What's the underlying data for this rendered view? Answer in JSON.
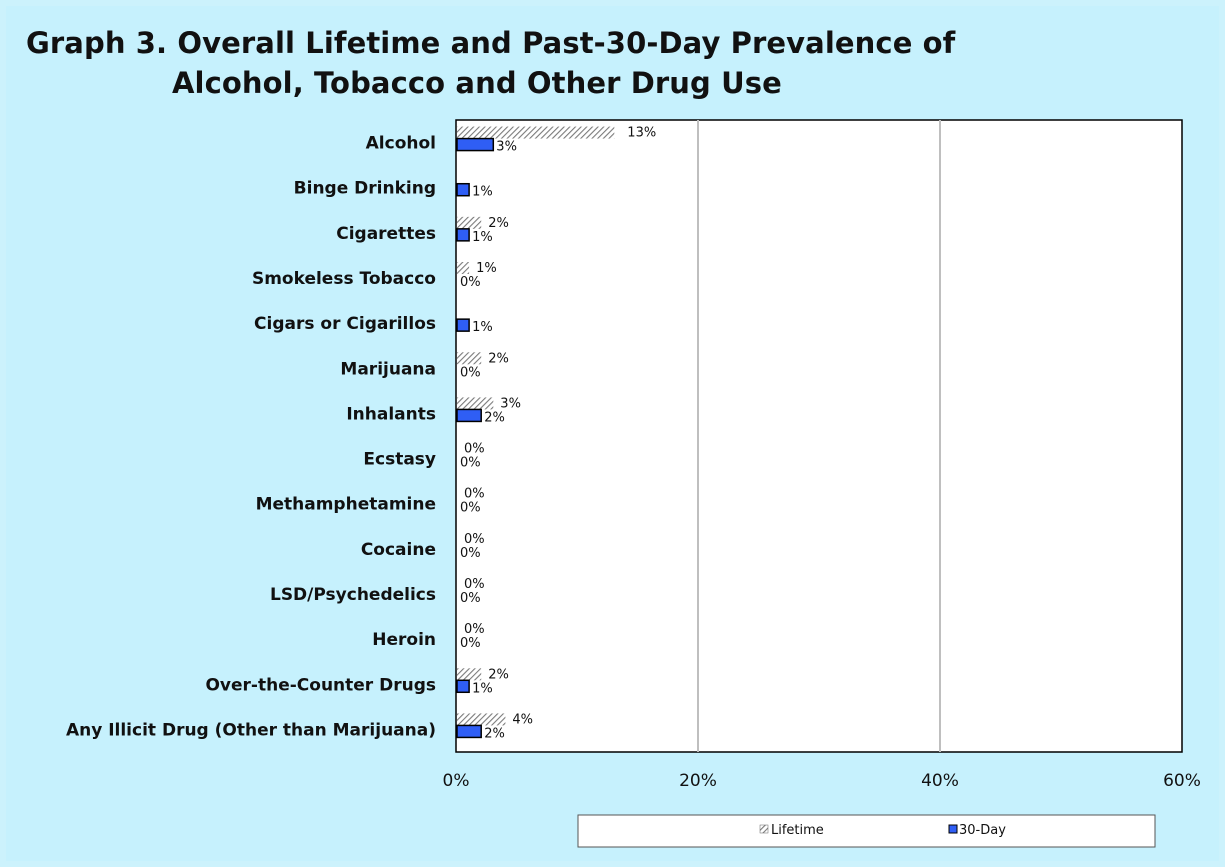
{
  "chart_data": {
    "type": "bar",
    "orientation": "horizontal",
    "title": "Graph 3. Overall Lifetime and Past-30-Day Prevalence of Alcohol, Tobacco and Other Drug Use",
    "title_lines": [
      "Graph 3. Overall Lifetime and Past-30-Day Prevalence of",
      "Alcohol, Tobacco and Other Drug Use"
    ],
    "xlabel": "",
    "ylabel": "",
    "xlim": [
      0,
      60
    ],
    "x_ticks": [
      0,
      20,
      40,
      60
    ],
    "x_tick_labels": [
      "0%",
      "20%",
      "40%",
      "60%"
    ],
    "grid": true,
    "legend_position": "bottom",
    "categories": [
      "Alcohol",
      "Binge Drinking",
      "Cigarettes",
      "Smokeless Tobacco",
      "Cigars or Cigarillos",
      "Marijuana",
      "Inhalants",
      "Ecstasy",
      "Methamphetamine",
      "Cocaine",
      "LSD/Psychedelics",
      "Heroin",
      "Over-the-Counter Drugs",
      "Any Illicit Drug (Other than Marijuana)"
    ],
    "series": [
      {
        "name": "Lifetime",
        "pattern": "hatched",
        "color": "#8c8c8c",
        "values": [
          13,
          null,
          2,
          1,
          null,
          2,
          3,
          0,
          0,
          0,
          0,
          0,
          2,
          4
        ],
        "labels": [
          "13%",
          "",
          "2%",
          "1%",
          "",
          "2%",
          "3%",
          "0%",
          "0%",
          "0%",
          "0%",
          "0%",
          "2%",
          "4%"
        ]
      },
      {
        "name": "30-Day",
        "pattern": "solid",
        "color": "#2f5ef5",
        "values": [
          3,
          1,
          1,
          0,
          1,
          0,
          2,
          0,
          0,
          0,
          0,
          0,
          1,
          2
        ],
        "labels": [
          "3%",
          "1%",
          "1%",
          "0%",
          "1%",
          "0%",
          "2%",
          "0%",
          "0%",
          "0%",
          "0%",
          "0%",
          "1%",
          "2%"
        ]
      }
    ]
  }
}
